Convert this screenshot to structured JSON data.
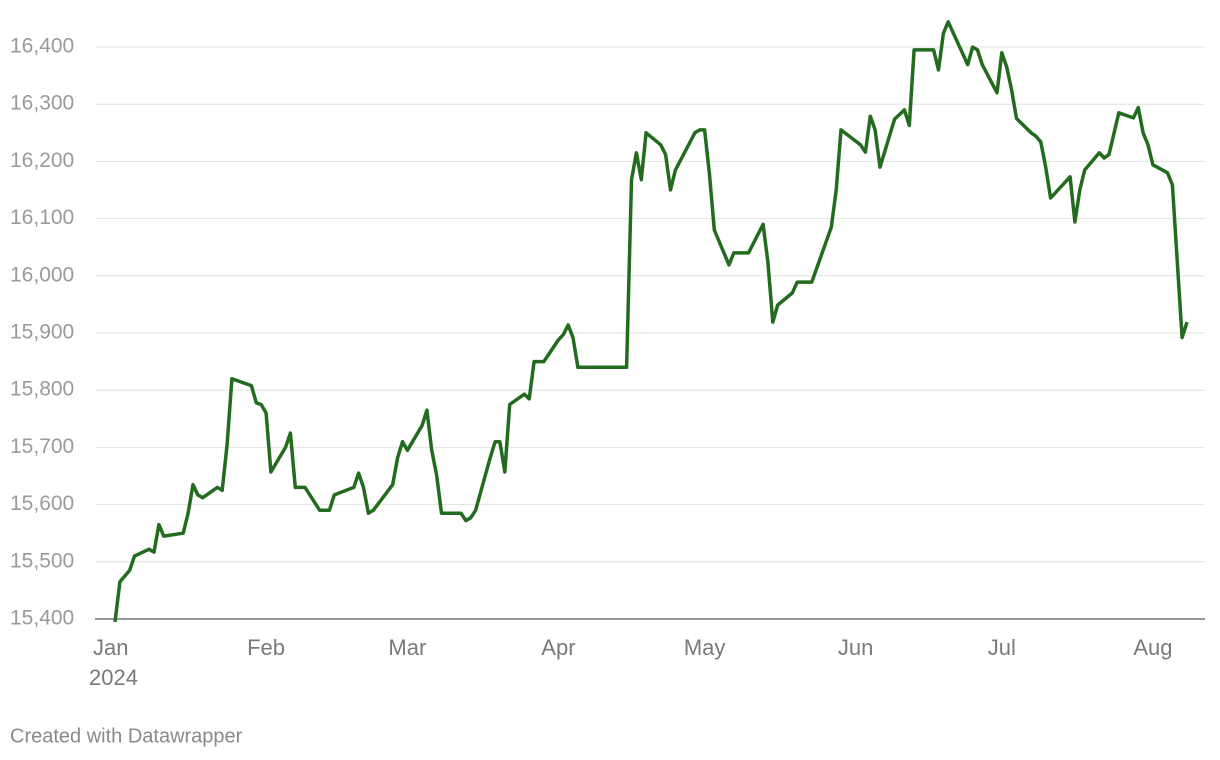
{
  "chart_data": {
    "type": "line",
    "credit": "Created with Datawrapper",
    "year": "2024",
    "color": "#236b1f",
    "grid": true,
    "x": [
      0,
      1,
      3,
      4,
      7,
      8,
      9,
      10,
      14,
      15,
      16,
      17,
      18,
      21,
      22,
      23,
      24,
      28,
      29,
      30,
      31,
      32,
      35,
      36,
      37,
      39,
      42,
      44,
      45,
      49,
      50,
      51,
      52,
      53,
      57,
      58,
      59,
      60,
      63,
      64,
      65,
      66,
      67,
      71,
      72,
      73,
      74,
      77,
      78,
      79,
      80,
      81,
      84,
      85,
      86,
      88,
      91,
      92,
      93,
      94,
      95,
      105,
      106,
      107,
      108,
      109,
      112,
      113,
      114,
      115,
      119,
      120,
      121,
      122,
      123,
      126,
      127,
      130,
      133,
      134,
      135,
      136,
      139,
      140,
      143,
      147,
      148,
      149,
      153,
      154,
      155,
      156,
      157,
      160,
      162,
      163,
      164,
      168,
      169,
      170,
      171,
      175,
      176,
      177,
      178,
      181,
      182,
      183,
      184,
      185,
      188,
      189,
      190,
      191,
      192,
      196,
      197,
      198,
      199,
      202,
      203,
      204,
      206,
      209,
      210,
      211,
      212,
      213,
      216,
      217,
      219,
      220
    ],
    "values": [
      15395,
      15465,
      15485,
      15510,
      15522,
      15517,
      15565,
      15545,
      15550,
      15585,
      15635,
      15617,
      15612,
      15630,
      15625,
      15705,
      15820,
      15808,
      15778,
      15775,
      15760,
      15657,
      15700,
      15725,
      15630,
      15630,
      15590,
      15590,
      15617,
      15630,
      15655,
      15630,
      15585,
      15590,
      15635,
      15682,
      15710,
      15695,
      15738,
      15765,
      15695,
      15652,
      15585,
      15585,
      15572,
      15577,
      15590,
      15682,
      15710,
      15710,
      15657,
      15775,
      15793,
      15785,
      15850,
      15850,
      15888,
      15897,
      15914,
      15892,
      15840,
      15840,
      16168,
      16215,
      16168,
      16250,
      16229,
      16212,
      16150,
      16185,
      16250,
      16255,
      16255,
      16177,
      16080,
      16019,
      16040,
      16040,
      16090,
      16024,
      15919,
      15949,
      15970,
      15989,
      15989,
      16085,
      16150,
      16255,
      16229,
      16216,
      16279,
      16255,
      16190,
      16274,
      16290,
      16263,
      16395,
      16395,
      16360,
      16424,
      16444,
      16369,
      16400,
      16395,
      16369,
      16320,
      16390,
      16365,
      16325,
      16275,
      16250,
      16244,
      16234,
      16190,
      16136,
      16173,
      16094,
      16150,
      16185,
      16215,
      16206,
      16212,
      16285,
      16276,
      16294,
      16250,
      16229,
      16194,
      16180,
      16159,
      15892,
      15919
    ],
    "xlim": [
      0,
      220
    ],
    "xticks": [
      {
        "value": 0,
        "label": "Jan"
      },
      {
        "value": 31,
        "label": "Feb"
      },
      {
        "value": 60,
        "label": "Mar"
      },
      {
        "value": 91,
        "label": "Apr"
      },
      {
        "value": 121,
        "label": "May"
      },
      {
        "value": 152,
        "label": "Jun"
      },
      {
        "value": 182,
        "label": "Jul"
      },
      {
        "value": 213,
        "label": "Aug"
      }
    ],
    "ylim": [
      15400,
      16400
    ],
    "yticks": [
      {
        "value": 15400,
        "label": "15,400"
      },
      {
        "value": 15500,
        "label": "15,500"
      },
      {
        "value": 15600,
        "label": "15,600"
      },
      {
        "value": 15700,
        "label": "15,700"
      },
      {
        "value": 15800,
        "label": "15,800"
      },
      {
        "value": 15900,
        "label": "15,900"
      },
      {
        "value": 16000,
        "label": "16,000"
      },
      {
        "value": 16100,
        "label": "16,100"
      },
      {
        "value": 16200,
        "label": "16,200"
      },
      {
        "value": 16300,
        "label": "16,300"
      },
      {
        "value": 16400,
        "label": "16,400"
      }
    ]
  }
}
